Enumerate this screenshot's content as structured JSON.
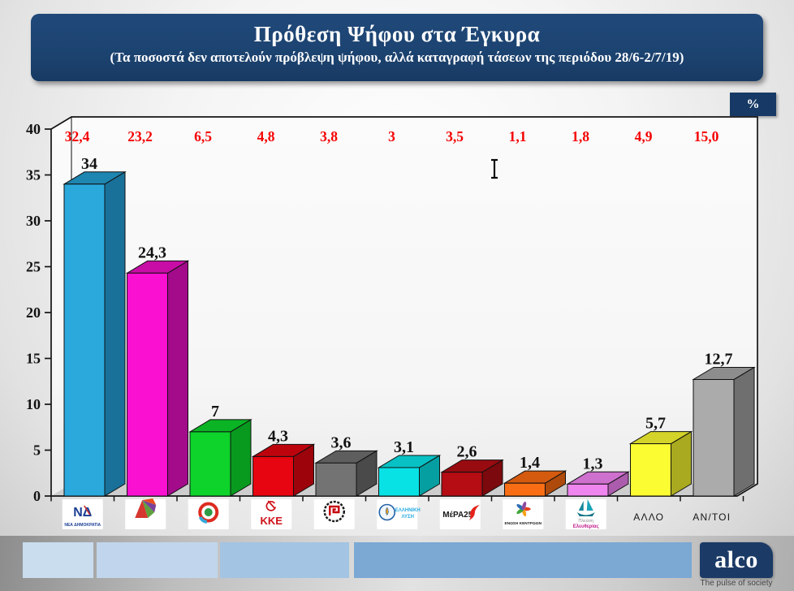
{
  "header": {
    "title": "Πρόθεση Ψήφου στα Έγκυρα",
    "subtitle": "(Τα ποσοστά δεν αποτελούν πρόβλεψη ψήφου, αλλά καταγραφή τάσεων της περιόδου 28/6-2/7/19)"
  },
  "unit_badge": "%",
  "chart_data": {
    "type": "bar",
    "title": "Πρόθεση Ψήφου στα Έγκυρα",
    "subtitle": "(Τα ποσοστά δεν αποτελούν πρόβλεψη ψήφου, αλλά καταγραφή τάσεων της περιόδου 28/6-2/7/19)",
    "unit": "%",
    "ylim": [
      0,
      40
    ],
    "y_ticks": [
      0,
      5,
      10,
      15,
      20,
      25,
      30,
      35,
      40
    ],
    "grid": false,
    "style": "3d-bars",
    "red_row_color": "#f50000",
    "value_label_color": "#111111",
    "series": [
      {
        "name": "current",
        "values": [
          34,
          24.3,
          7,
          4.3,
          3.6,
          3.1,
          2.6,
          1.4,
          1.3,
          5.7,
          12.7
        ]
      },
      {
        "name": "previous_red_row",
        "values": [
          32.4,
          23.2,
          6.5,
          4.8,
          3.8,
          3,
          3.5,
          1.1,
          1.8,
          4.9,
          15.0
        ]
      }
    ],
    "categories": [
      {
        "id": "nea-dimokratia",
        "logo": "nd",
        "box_text": "ΝΔ",
        "caption": "ΝΕΑ ΔΗΜΟΚΡΑΤΙΑ",
        "value": 34,
        "value_label": "34",
        "prev_label": "32,4",
        "front": "#2ba9dd",
        "side": "#19719a",
        "top": "#1e86b0"
      },
      {
        "id": "syriza",
        "logo": "syriza",
        "value": 24.3,
        "value_label": "24,3",
        "prev_label": "23,2",
        "front": "#fa10d0",
        "side": "#a30b8b",
        "top": "#c70da6"
      },
      {
        "id": "kinima-allagis",
        "logo": "kinal",
        "value": 7,
        "value_label": "7",
        "prev_label": "6,5",
        "front": "#0dd32b",
        "side": "#089a1e",
        "top": "#0bb424"
      },
      {
        "id": "kke",
        "logo": "kke",
        "box_text": "ΚΚΕ",
        "value": 4.3,
        "value_label": "4,3",
        "prev_label": "4,8",
        "front": "#e60510",
        "side": "#9c030b",
        "top": "#bd040d"
      },
      {
        "id": "chrysi-avgi",
        "logo": "xa",
        "value": 3.6,
        "value_label": "3,6",
        "prev_label": "3,8",
        "front": "#737373",
        "side": "#4a4a4a",
        "top": "#5e5e5e"
      },
      {
        "id": "elliniki-lysi",
        "logo": "lysi",
        "caption_lines": [
          "ΕΛΛΗΝΙΚΗ",
          "ΛΥΣΗ"
        ],
        "value": 3.1,
        "value_label": "3,1",
        "prev_label": "3",
        "front": "#08e2e5",
        "side": "#059fa2",
        "top": "#07c1c4"
      },
      {
        "id": "mera25",
        "logo": "mera",
        "box_text": "ΜέΡΑ25",
        "value": 2.6,
        "value_label": "2,6",
        "prev_label": "3,5",
        "front": "#b50d13",
        "side": "#7b090d",
        "top": "#980b10"
      },
      {
        "id": "enosi-kentroon",
        "logo": "ek",
        "caption": "ΕΝΩΣΗ ΚΕΝΤΡΩΩΝ",
        "value": 1.4,
        "value_label": "1,4",
        "prev_label": "1,1",
        "front": "#f96e14",
        "side": "#ae4a0b",
        "top": "#d45a10"
      },
      {
        "id": "plefsi-eleftherias",
        "logo": "plefsi",
        "caption_lines": [
          "Πλεύση",
          "Ελευθερίας"
        ],
        "value": 1.3,
        "value_label": "1,3",
        "prev_label": "1,8",
        "front": "#ef86ef",
        "side": "#ac5cac",
        "top": "#ce70ce"
      },
      {
        "id": "allo",
        "logo": "text",
        "label": "ΑΛΛΟ",
        "value": 5.7,
        "value_label": "5,7",
        "prev_label": "4,9",
        "front": "#fcfc33",
        "side": "#aaaa20",
        "top": "#d3d329"
      },
      {
        "id": "anapofasistoi",
        "logo": "text",
        "label": "ΑΝ/ΤΟΙ",
        "value": 12.7,
        "value_label": "12,7",
        "prev_label": "15,0",
        "front": "#ababab",
        "side": "#6f6f6f",
        "top": "#8d8d8d"
      }
    ]
  },
  "footer": {
    "swatches": [
      "#caddef",
      "#c1d6ec",
      "#a3c4e3",
      "#7ca8d4"
    ],
    "alco": {
      "brand": "alco",
      "tagline": "The pulse of society",
      "bg": "#1b3a66"
    }
  }
}
